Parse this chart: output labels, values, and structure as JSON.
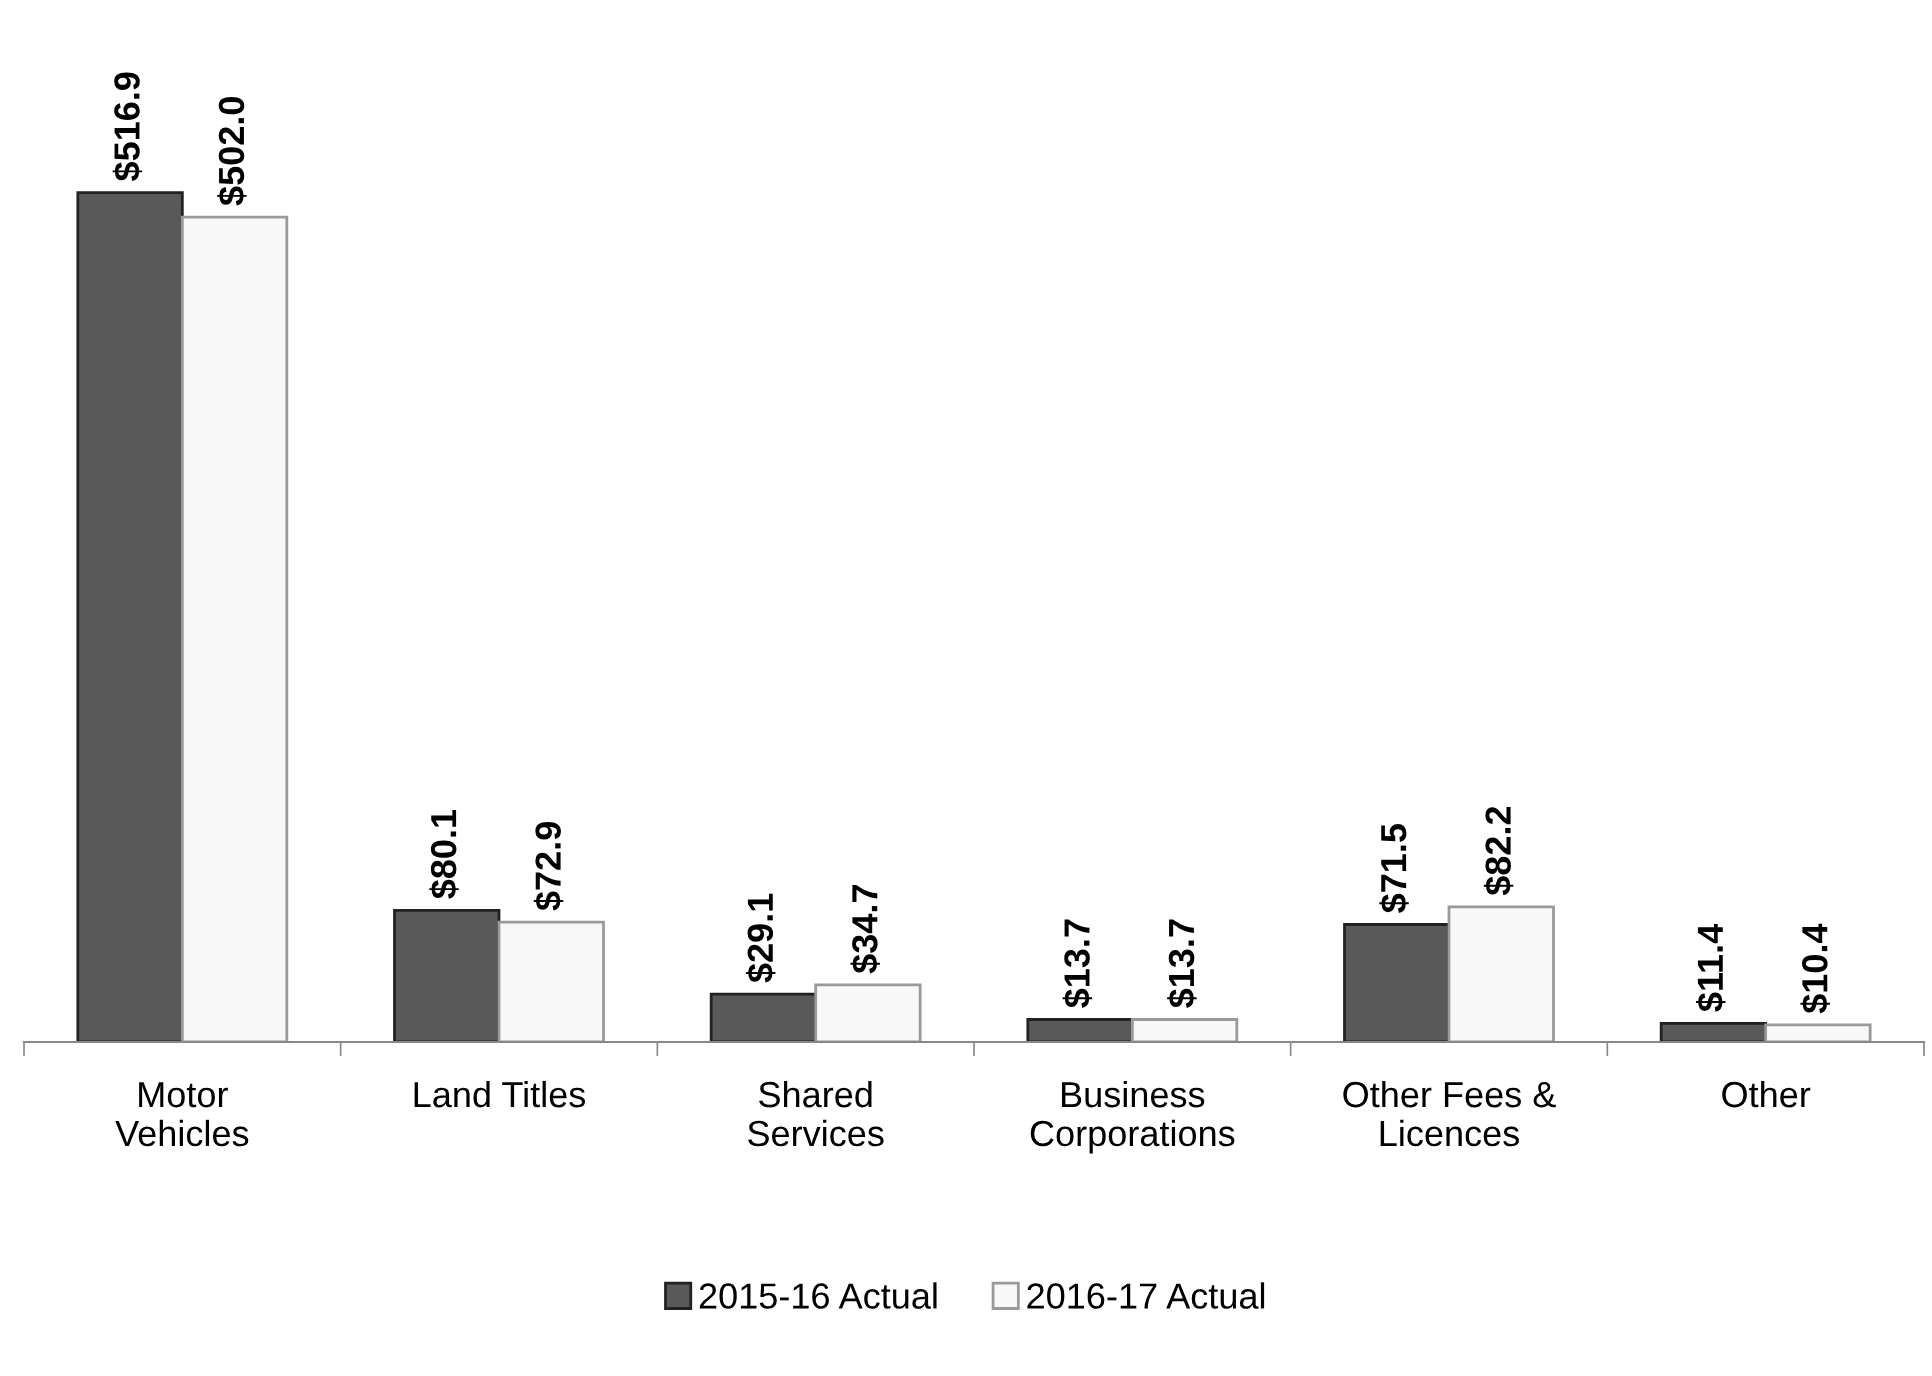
{
  "chart_data": {
    "type": "bar",
    "categories": [
      "Motor\nVehicles",
      "Land Titles",
      "Shared\nServices",
      "Business\nCorporations",
      "Other Fees &\nLicences",
      "Other"
    ],
    "series": [
      {
        "name": "2015-16 Actual",
        "color": "#595959",
        "values": [
          516.9,
          80.1,
          29.1,
          13.7,
          71.5,
          11.4
        ],
        "value_labels": [
          "$516.9",
          "$80.1",
          "$29.1",
          "$13.7",
          "$71.5",
          "$11.4"
        ]
      },
      {
        "name": "2016-17 Actual",
        "color": "#f8f8f8",
        "values": [
          502.0,
          72.9,
          34.7,
          13.7,
          82.2,
          10.4
        ],
        "value_labels": [
          "$502.0",
          "$72.9",
          "$34.7",
          "$13.7",
          "$82.2",
          "$10.4"
        ]
      }
    ],
    "legend": "bottom",
    "grid": false,
    "tick_labels": "x"
  }
}
